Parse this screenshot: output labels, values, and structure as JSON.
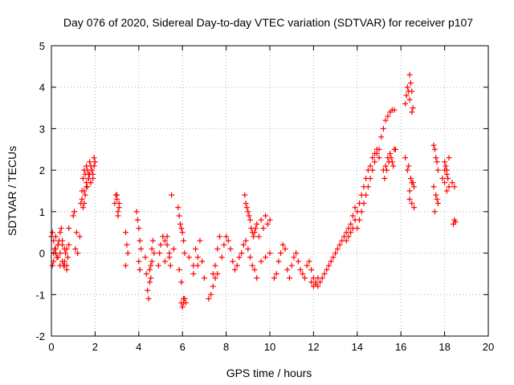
{
  "chart_data": {
    "type": "scatter",
    "title": "Day 076 of 2020, Sidereal Day-to-day VTEC variation (SDTVAR) for receiver p107",
    "xlabel": "GPS time / hours",
    "ylabel": "SDTVAR / TECUs",
    "xlim": [
      0,
      20
    ],
    "ylim": [
      -2,
      5
    ],
    "xticks": [
      "0",
      "2",
      "4",
      "6",
      "8",
      "10",
      "12",
      "14",
      "16",
      "18",
      "20"
    ],
    "yticks": [
      "-2",
      "-1",
      "0",
      "1",
      "2",
      "3",
      "4",
      "5"
    ],
    "grid": true,
    "marker": "+",
    "color": "#ff0000",
    "series": [
      {
        "name": "SDTVAR",
        "x": [
          0.0,
          0.05,
          0.1,
          0.15,
          0.2,
          0.25,
          0.3,
          0.35,
          0.4,
          0.45,
          0.5,
          0.55,
          0.6,
          0.65,
          0.7,
          0.75,
          0.8,
          0.05,
          0.1,
          0.2,
          0.3,
          0.4,
          0.5,
          0.6,
          0.7,
          0.1,
          0.2,
          0.3,
          0.4,
          0.5,
          0.6,
          0.7,
          0.8,
          1.0,
          1.05,
          1.1,
          1.15,
          1.2,
          1.3,
          1.35,
          1.4,
          1.45,
          1.5,
          1.55,
          1.6,
          1.65,
          1.7,
          1.75,
          1.8,
          1.85,
          1.9,
          1.95,
          2.0,
          1.4,
          1.5,
          1.6,
          1.7,
          1.8,
          1.9,
          1.45,
          1.55,
          1.65,
          1.75,
          1.85,
          1.95,
          1.5,
          1.6,
          1.7,
          1.8,
          2.9,
          2.95,
          3.0,
          3.05,
          3.1,
          3.0,
          3.05,
          3.1,
          3.4,
          3.45,
          3.5,
          3.4,
          3.9,
          3.95,
          4.0,
          4.05,
          4.1,
          4.0,
          4.05,
          4.3,
          4.35,
          4.4,
          4.45,
          4.5,
          4.55,
          4.6,
          4.65,
          4.7,
          4.5,
          4.55,
          4.6,
          4.9,
          4.95,
          5.0,
          5.1,
          5.2,
          5.3,
          5.4,
          5.5,
          5.6,
          5.2,
          5.3,
          5.4,
          5.45,
          5.8,
          5.85,
          5.9,
          5.95,
          6.0,
          6.05,
          6.1,
          5.85,
          5.95,
          6.05,
          5.95,
          6.0,
          6.05,
          6.1,
          6.15,
          6.3,
          6.5,
          6.7,
          6.8,
          6.9,
          7.0,
          6.5,
          6.6,
          6.7,
          7.2,
          7.3,
          7.4,
          7.5,
          7.6,
          7.7,
          7.4,
          7.5,
          7.6,
          7.8,
          7.9,
          8.0,
          8.1,
          8.2,
          8.3,
          8.4,
          8.5,
          8.6,
          8.7,
          8.8,
          8.9,
          9.0,
          9.1,
          9.2,
          9.3,
          9.4,
          8.85,
          8.9,
          8.95,
          9.0,
          9.05,
          9.1,
          9.15,
          9.2,
          9.25,
          9.3,
          9.35,
          9.4,
          9.5,
          9.6,
          9.7,
          9.8,
          9.9,
          10.0,
          9.6,
          9.8,
          10.0,
          10.2,
          10.3,
          10.4,
          10.5,
          10.6,
          10.7,
          10.8,
          10.9,
          11.0,
          11.1,
          11.2,
          11.3,
          11.4,
          11.5,
          11.6,
          11.7,
          11.8,
          11.9,
          12.0,
          12.1,
          12.2,
          12.3,
          12.4,
          12.5,
          12.6,
          12.7,
          12.8,
          12.9,
          13.0,
          13.1,
          13.2,
          13.3,
          13.4,
          13.5,
          13.6,
          13.7,
          13.8,
          13.9,
          11.9,
          12.0,
          12.1,
          12.2,
          13.5,
          13.6,
          13.7,
          13.8,
          13.9,
          14.0,
          14.1,
          14.2,
          14.3,
          14.4,
          14.5,
          14.6,
          14.7,
          14.8,
          14.9,
          15.0,
          14.0,
          14.1,
          14.2,
          14.3,
          14.4,
          14.5,
          14.6,
          14.7,
          14.8,
          14.9,
          15.0,
          15.1,
          15.2,
          15.3,
          15.4,
          15.5,
          15.6,
          15.7,
          15.2,
          15.3,
          15.4,
          15.5,
          15.6,
          15.7,
          15.25,
          15.35,
          15.45,
          15.55,
          15.65,
          15.75,
          16.2,
          16.25,
          16.3,
          16.35,
          16.4,
          16.45,
          16.5,
          16.55,
          16.4,
          16.5,
          16.4,
          16.5,
          16.6,
          16.2,
          16.3,
          16.4,
          16.5,
          16.6,
          16.35,
          16.45,
          16.55,
          17.5,
          17.55,
          17.6,
          17.65,
          17.7,
          17.5,
          17.6,
          17.7,
          17.55,
          17.65,
          18.0,
          18.05,
          18.1,
          18.15,
          18.2,
          18.0,
          18.1,
          18.2,
          17.9,
          18.0,
          18.1,
          18.4,
          18.45,
          18.5,
          18.35,
          18.45
        ],
        "y": [
          0.4,
          0.5,
          0.3,
          0.1,
          0.0,
          -0.1,
          0.2,
          0.3,
          0.5,
          0.6,
          0.3,
          -0.3,
          -0.2,
          0.0,
          0.1,
          -0.1,
          0.2,
          -0.3,
          -0.2,
          0.4,
          0.2,
          -0.3,
          -0.2,
          -0.3,
          -0.4,
          0.0,
          0.1,
          -0.1,
          0.0,
          0.2,
          0.1,
          -0.3,
          0.6,
          0.9,
          1.0,
          0.1,
          0.5,
          0.0,
          0.4,
          1.2,
          1.5,
          1.8,
          2.0,
          1.9,
          2.1,
          2.0,
          1.8,
          2.2,
          2.1,
          2.0,
          1.9,
          2.3,
          2.2,
          1.3,
          1.5,
          1.7,
          1.9,
          1.7,
          1.8,
          1.1,
          1.4,
          1.6,
          1.9,
          2.0,
          2.1,
          1.2,
          1.6,
          1.8,
          1.7,
          1.2,
          1.4,
          1.3,
          1.0,
          1.1,
          1.4,
          0.9,
          1.2,
          0.5,
          0.2,
          0.0,
          -0.3,
          1.0,
          0.8,
          0.6,
          0.3,
          0.1,
          -0.2,
          -0.4,
          -0.1,
          -0.5,
          -0.9,
          -1.1,
          -0.7,
          -0.3,
          0.1,
          0.3,
          0.0,
          -0.4,
          -0.6,
          -0.2,
          -0.3,
          0.0,
          0.2,
          0.4,
          0.3,
          0.2,
          0.0,
          1.4,
          0.1,
          -0.2,
          0.4,
          -0.1,
          -0.3,
          1.1,
          0.9,
          0.7,
          0.6,
          0.5,
          0.3,
          0.0,
          -0.4,
          -0.7,
          -1.1,
          -1.2,
          -1.3,
          -1.2,
          -1.1,
          -1.2,
          -0.1,
          -0.5,
          -0.3,
          0.3,
          -0.2,
          -0.6,
          -0.3,
          0.1,
          -0.1,
          -1.1,
          -1.0,
          -0.5,
          -0.3,
          0.1,
          0.4,
          -0.8,
          -0.6,
          -0.5,
          -0.1,
          0.2,
          0.4,
          0.3,
          0.1,
          -0.2,
          -0.4,
          -0.3,
          -0.1,
          0.0,
          0.2,
          0.3,
          0.1,
          -0.1,
          -0.3,
          -0.4,
          -0.6,
          1.4,
          1.2,
          1.1,
          1.0,
          0.9,
          0.8,
          0.6,
          0.5,
          0.4,
          0.5,
          0.6,
          0.7,
          0.4,
          0.8,
          0.6,
          0.9,
          0.7,
          0.8,
          -0.2,
          -0.1,
          0.0,
          -0.6,
          -0.5,
          -0.2,
          0.0,
          0.2,
          0.1,
          -0.4,
          -0.6,
          -0.3,
          -0.1,
          0.0,
          -0.2,
          -0.4,
          -0.5,
          -0.6,
          -0.3,
          -0.2,
          -0.4,
          -0.6,
          -0.7,
          -0.8,
          -0.7,
          -0.6,
          -0.5,
          -0.4,
          -0.3,
          -0.2,
          -0.1,
          0.0,
          0.1,
          0.2,
          0.3,
          0.4,
          0.5,
          0.6,
          0.7,
          0.9,
          1.1,
          -0.7,
          -0.8,
          -0.75,
          -0.6,
          0.3,
          0.4,
          0.5,
          0.6,
          0.8,
          1.0,
          1.2,
          1.4,
          1.6,
          1.8,
          2.0,
          2.1,
          2.3,
          2.4,
          2.5,
          2.3,
          0.6,
          0.8,
          1.0,
          1.2,
          1.4,
          1.6,
          1.8,
          2.0,
          2.2,
          2.4,
          2.5,
          2.8,
          3.0,
          3.2,
          3.3,
          3.4,
          3.45,
          3.45,
          2.0,
          2.1,
          2.3,
          2.4,
          2.2,
          2.5,
          1.8,
          2.0,
          2.2,
          2.3,
          2.1,
          2.5,
          3.6,
          3.8,
          4.0,
          3.9,
          4.3,
          4.1,
          3.9,
          3.5,
          3.7,
          3.4,
          1.5,
          1.7,
          1.6,
          2.3,
          2.0,
          1.3,
          1.2,
          1.1,
          2.1,
          1.8,
          1.7,
          2.6,
          2.5,
          2.3,
          2.2,
          2.0,
          1.6,
          1.4,
          1.2,
          1.0,
          1.3,
          2.2,
          2.1,
          2.0,
          1.8,
          2.3,
          1.7,
          1.5,
          1.6,
          1.8,
          2.0,
          1.9,
          0.7,
          0.8,
          0.75,
          1.7,
          1.6
        ]
      }
    ]
  }
}
